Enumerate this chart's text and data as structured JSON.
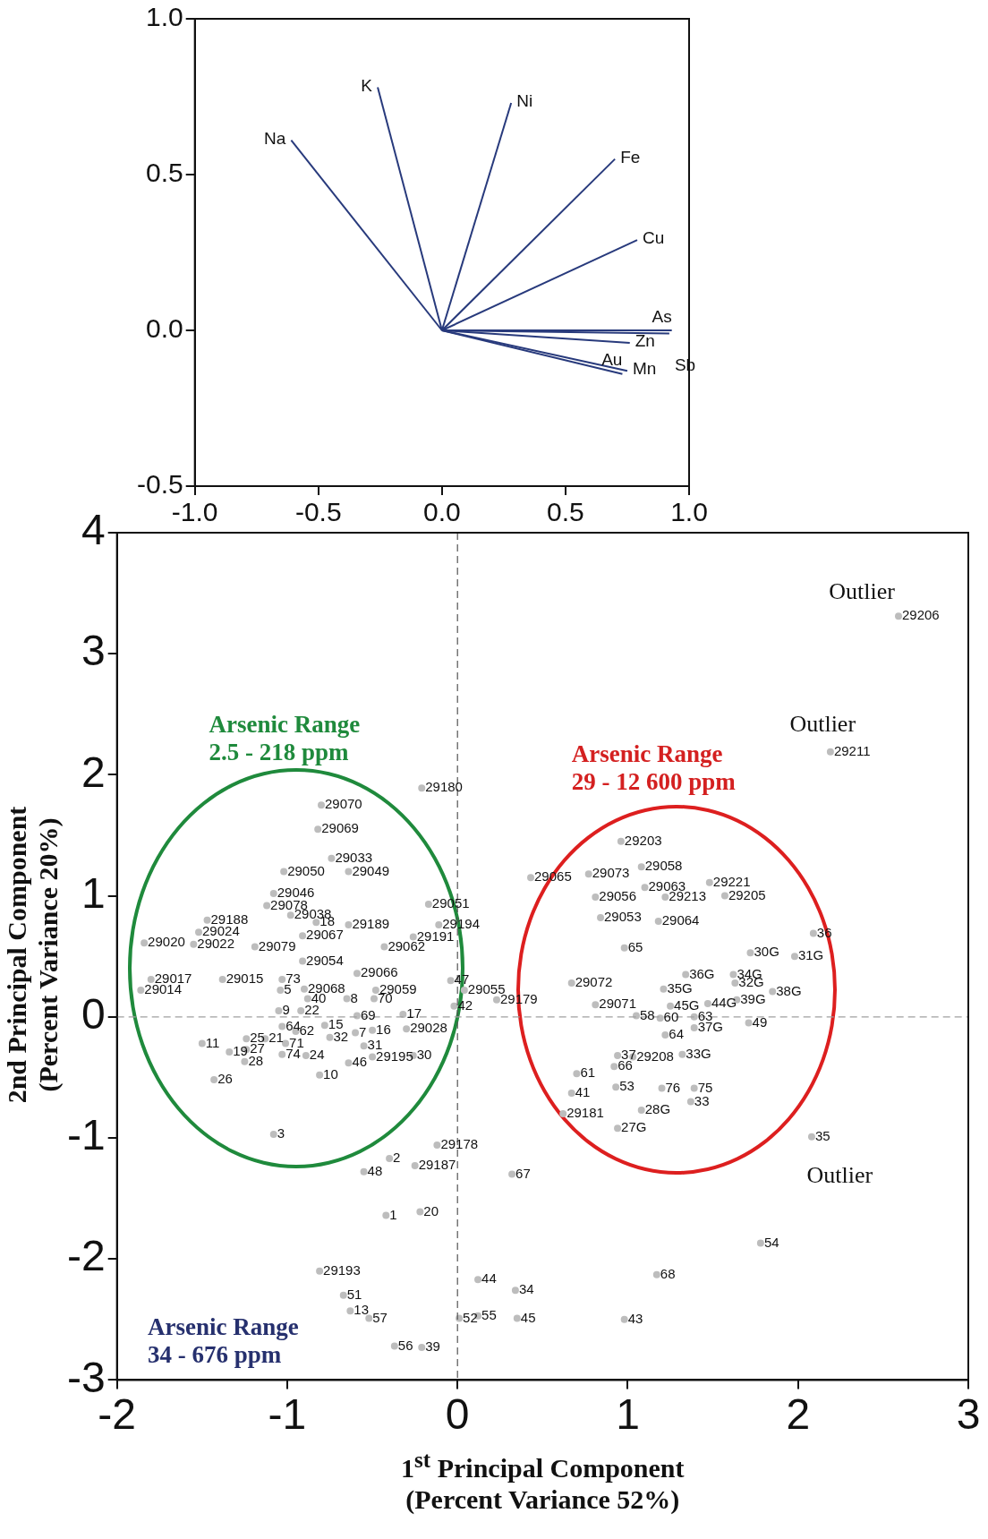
{
  "chart_data": [
    {
      "type": "line",
      "xlim": [
        -1,
        1
      ],
      "xticks": [
        {
          "value": -1,
          "label": "-1.0"
        },
        {
          "value": -0.5,
          "label": "-0.5"
        },
        {
          "value": 0,
          "label": "0.0"
        },
        {
          "value": 0.5,
          "label": "0.5"
        },
        {
          "value": 1,
          "label": "1.0"
        }
      ],
      "ylim": [
        -0.5,
        1
      ],
      "yticks": [
        {
          "value": -0.5,
          "label": "-0.5"
        },
        {
          "value": 0,
          "label": "0.0"
        },
        {
          "value": 0.5,
          "label": "0.5"
        },
        {
          "value": 1,
          "label": "1.0"
        }
      ],
      "series": [
        {
          "name": "Na",
          "color": "#283a7c",
          "x": [
            0,
            -0.61
          ],
          "values": [
            0,
            0.61
          ]
        },
        {
          "name": "K",
          "color": "#283a7c",
          "x": [
            0,
            -0.26
          ],
          "values": [
            0,
            0.78
          ]
        },
        {
          "name": "Ni",
          "color": "#283a7c",
          "x": [
            0,
            0.28
          ],
          "values": [
            0,
            0.73
          ]
        },
        {
          "name": "Fe",
          "color": "#283a7c",
          "x": [
            0,
            0.7
          ],
          "values": [
            0,
            0.55
          ]
        },
        {
          "name": "Cu",
          "color": "#283a7c",
          "x": [
            0,
            0.79
          ],
          "values": [
            0,
            0.29
          ]
        },
        {
          "name": "As",
          "color": "#283a7c",
          "x": [
            0,
            0.93
          ],
          "values": [
            0,
            0.0
          ]
        },
        {
          "name": "Zn",
          "color": "#283a7c",
          "x": [
            0,
            0.76
          ],
          "values": [
            0,
            -0.04
          ]
        },
        {
          "name": "Sb",
          "color": "#283a7c",
          "x": [
            0,
            0.92
          ],
          "values": [
            0,
            -0.01
          ]
        },
        {
          "name": "Mn",
          "color": "#283a7c",
          "x": [
            0,
            0.75
          ],
          "values": [
            0,
            -0.13
          ]
        },
        {
          "name": "Au",
          "color": "#283a7c",
          "x": [
            0,
            0.73
          ],
          "values": [
            0,
            -0.14
          ]
        }
      ]
    },
    {
      "type": "scatter",
      "xlabel": "1$^{st}$ Principal Component\n(Percent Variance 52%)",
      "ylabel": "2nd Principal Component\n(Percent Variance 20%)",
      "color": "#bdbdbd",
      "marker": "circle",
      "xlim": [
        -2,
        3
      ],
      "xticks": [
        -2,
        -1,
        0,
        1,
        2,
        3
      ],
      "ylim": [
        -3,
        4
      ],
      "yticks": [
        -3,
        -2,
        -1,
        0,
        1,
        2,
        3,
        4
      ],
      "ref_lines": [
        {
          "axis": "x",
          "value": 0,
          "line_style": "dashed",
          "color": "#555555"
        },
        {
          "axis": "y",
          "value": 0,
          "line_style": "dashed",
          "color": "#a0a0a0"
        }
      ],
      "x": [
        -0.21,
        -0.8,
        -0.82,
        -0.74,
        -1.02,
        -0.64,
        -1.08,
        -1.12,
        -0.17,
        -0.98,
        -0.64,
        -0.83,
        -0.11,
        -1.47,
        -1.52,
        -0.91,
        -0.26,
        -1.84,
        -1.55,
        -1.19,
        -0.43,
        -0.91,
        -0.59,
        -1.8,
        -1.86,
        -1.38,
        -1.03,
        -1.04,
        -0.9,
        -0.88,
        -0.65,
        -0.48,
        -0.49,
        -0.04,
        -0.02,
        0.04,
        0.23,
        -1.05,
        -0.92,
        -0.59,
        -0.32,
        -0.3,
        -1.03,
        -0.95,
        -0.78,
        -0.75,
        -0.6,
        -0.5,
        -1.5,
        -1.24,
        -1.13,
        -1.34,
        -1.24,
        -1.01,
        -1.03,
        -0.89,
        -0.55,
        -0.5,
        -0.26,
        -1.25,
        -0.64,
        -0.81,
        -1.43,
        -1.08,
        -0.12,
        -0.4,
        -0.55,
        -0.25,
        0.32,
        -0.42,
        -0.22,
        -0.81,
        0.12,
        0.34,
        -0.67,
        -0.63,
        -0.52,
        0.01,
        0.12,
        0.35,
        -0.37,
        -0.21,
        0.96,
        1.08,
        0.43,
        0.77,
        1.1,
        1.48,
        0.81,
        1.22,
        1.57,
        0.84,
        1.18,
        2.09,
        0.98,
        1.72,
        1.98,
        0.67,
        1.34,
        1.62,
        1.63,
        1.21,
        1.85,
        1.47,
        1.64,
        1.25,
        0.81,
        1.05,
        1.19,
        1.39,
        1.71,
        1.39,
        1.22,
        0.94,
        1.03,
        1.32,
        0.92,
        0.7,
        0.67,
        0.93,
        1.2,
        1.39,
        1.37,
        1.08,
        0.62,
        0.94,
        2.08,
        2.59,
        2.19,
        1.78,
        1.17,
        0.98
      ],
      "values": [
        1.89,
        1.75,
        1.55,
        1.31,
        1.2,
        1.2,
        1.02,
        0.92,
        0.93,
        0.84,
        0.76,
        0.78,
        0.76,
        0.8,
        0.7,
        0.67,
        0.66,
        0.61,
        0.6,
        0.58,
        0.58,
        0.46,
        0.36,
        0.31,
        0.22,
        0.31,
        0.31,
        0.22,
        0.23,
        0.15,
        0.15,
        0.22,
        0.15,
        0.3,
        0.09,
        0.22,
        0.14,
        0.05,
        0.05,
        0.01,
        0.02,
        -0.1,
        -0.08,
        -0.12,
        -0.07,
        -0.17,
        -0.13,
        -0.11,
        -0.22,
        -0.18,
        -0.18,
        -0.29,
        -0.27,
        -0.22,
        -0.31,
        -0.32,
        -0.24,
        -0.33,
        -0.32,
        -0.37,
        -0.38,
        -0.48,
        -0.52,
        -0.97,
        -1.06,
        -1.17,
        -1.28,
        -1.23,
        -1.3,
        -1.64,
        -1.61,
        -2.1,
        -2.17,
        -2.26,
        -2.3,
        -2.43,
        -2.49,
        -2.49,
        -2.47,
        -2.49,
        -2.72,
        -2.73,
        1.45,
        1.24,
        1.15,
        1.18,
        1.07,
        1.11,
        0.99,
        0.99,
        1.0,
        0.82,
        0.79,
        0.69,
        0.57,
        0.53,
        0.5,
        0.28,
        0.35,
        0.35,
        0.28,
        0.23,
        0.21,
        0.11,
        0.14,
        0.09,
        0.1,
        0.01,
        -0.01,
        0.0,
        -0.05,
        -0.09,
        -0.15,
        -0.32,
        -0.33,
        -0.31,
        -0.41,
        -0.47,
        -0.63,
        -0.58,
        -0.59,
        -0.59,
        -0.7,
        -0.77,
        -0.8,
        -0.92,
        -0.99,
        3.31,
        2.19,
        -1.87,
        -2.13,
        -2.5
      ],
      "annotations": [
        "Arsenic Range\n2.5 - 218 ppm",
        "Arsenic Range\n29 - 12 600 ppm",
        "Arsenic Range\n34 - 676 ppm",
        "Outlier",
        "Outlier",
        "Outlier",
        {
          "text": "29180",
          "x": -0.21,
          "y": 1.89
        },
        {
          "text": "29070",
          "x": -0.8,
          "y": 1.75
        },
        {
          "text": "29069",
          "x": -0.82,
          "y": 1.55
        },
        {
          "text": "29033",
          "x": -0.74,
          "y": 1.31
        },
        {
          "text": "29050",
          "x": -1.02,
          "y": 1.2
        },
        {
          "text": "29049",
          "x": -0.64,
          "y": 1.2
        },
        {
          "text": "29046",
          "x": -1.08,
          "y": 1.02
        },
        {
          "text": "29078",
          "x": -1.12,
          "y": 0.92
        },
        {
          "text": "29051",
          "x": -0.17,
          "y": 0.93
        },
        {
          "text": "29038",
          "x": -0.98,
          "y": 0.84
        },
        {
          "text": "29189",
          "x": -0.64,
          "y": 0.76
        },
        {
          "text": "18",
          "x": -0.83,
          "y": 0.78
        },
        {
          "text": "29194",
          "x": -0.11,
          "y": 0.76
        },
        {
          "text": "29188",
          "x": -1.47,
          "y": 0.8
        },
        {
          "text": "29024",
          "x": -1.52,
          "y": 0.7
        },
        {
          "text": "29067",
          "x": -0.91,
          "y": 0.67
        },
        {
          "text": "29191",
          "x": -0.26,
          "y": 0.66
        },
        {
          "text": "29020",
          "x": -1.84,
          "y": 0.61
        },
        {
          "text": "29022",
          "x": -1.55,
          "y": 0.6
        },
        {
          "text": "29079",
          "x": -1.19,
          "y": 0.58
        },
        {
          "text": "29062",
          "x": -0.43,
          "y": 0.58
        },
        {
          "text": "29054",
          "x": -0.91,
          "y": 0.46
        },
        {
          "text": "29066",
          "x": -0.59,
          "y": 0.36
        },
        {
          "text": "29017",
          "x": -1.8,
          "y": 0.31
        },
        {
          "text": "29014",
          "x": -1.86,
          "y": 0.22
        },
        {
          "text": "29015",
          "x": -1.38,
          "y": 0.31
        },
        {
          "text": "73",
          "x": -1.03,
          "y": 0.31
        },
        {
          "text": "5",
          "x": -1.04,
          "y": 0.22
        },
        {
          "text": "29068",
          "x": -0.9,
          "y": 0.23
        },
        {
          "text": "40",
          "x": -0.88,
          "y": 0.15
        },
        {
          "text": "8",
          "x": -0.65,
          "y": 0.15
        },
        {
          "text": "29059",
          "x": -0.48,
          "y": 0.22
        },
        {
          "text": "70",
          "x": -0.49,
          "y": 0.15
        },
        {
          "text": "47",
          "x": -0.04,
          "y": 0.3
        },
        {
          "text": "42",
          "x": -0.02,
          "y": 0.09
        },
        {
          "text": "29055",
          "x": 0.04,
          "y": 0.22
        },
        {
          "text": "29179",
          "x": 0.23,
          "y": 0.14
        },
        {
          "text": "9",
          "x": -1.05,
          "y": 0.05
        },
        {
          "text": "22",
          "x": -0.92,
          "y": 0.05
        },
        {
          "text": "69",
          "x": -0.59,
          "y": 0.01
        },
        {
          "text": "17",
          "x": -0.32,
          "y": 0.02
        },
        {
          "text": "29028",
          "x": -0.3,
          "y": -0.1
        },
        {
          "text": "64",
          "x": -1.03,
          "y": -0.08
        },
        {
          "text": "62",
          "x": -0.95,
          "y": -0.12
        },
        {
          "text": "15",
          "x": -0.78,
          "y": -0.07
        },
        {
          "text": "32",
          "x": -0.75,
          "y": -0.17
        },
        {
          "text": "7",
          "x": -0.6,
          "y": -0.13
        },
        {
          "text": "16",
          "x": -0.5,
          "y": -0.11
        },
        {
          "text": "11",
          "x": -1.5,
          "y": -0.22
        },
        {
          "text": "25",
          "x": -1.24,
          "y": -0.18
        },
        {
          "text": "21",
          "x": -1.13,
          "y": -0.18
        },
        {
          "text": "19",
          "x": -1.34,
          "y": -0.29
        },
        {
          "text": "27",
          "x": -1.24,
          "y": -0.27
        },
        {
          "text": "71",
          "x": -1.01,
          "y": -0.22
        },
        {
          "text": "74",
          "x": -1.03,
          "y": -0.31
        },
        {
          "text": "24",
          "x": -0.89,
          "y": -0.32
        },
        {
          "text": "31",
          "x": -0.55,
          "y": -0.24
        },
        {
          "text": "29195",
          "x": -0.5,
          "y": -0.33
        },
        {
          "text": "30",
          "x": -0.26,
          "y": -0.32
        },
        {
          "text": "28",
          "x": -1.25,
          "y": -0.37
        },
        {
          "text": "46",
          "x": -0.64,
          "y": -0.38
        },
        {
          "text": "10",
          "x": -0.81,
          "y": -0.48
        },
        {
          "text": "26",
          "x": -1.43,
          "y": -0.52
        },
        {
          "text": "3",
          "x": -1.08,
          "y": -0.97
        },
        {
          "text": "29178",
          "x": -0.12,
          "y": -1.06
        },
        {
          "text": "2",
          "x": -0.4,
          "y": -1.17
        },
        {
          "text": "48",
          "x": -0.55,
          "y": -1.28
        },
        {
          "text": "29187",
          "x": -0.25,
          "y": -1.23
        },
        {
          "text": "67",
          "x": 0.32,
          "y": -1.3
        },
        {
          "text": "1",
          "x": -0.42,
          "y": -1.64
        },
        {
          "text": "20",
          "x": -0.22,
          "y": -1.61
        },
        {
          "text": "29193",
          "x": -0.81,
          "y": -2.1
        },
        {
          "text": "44",
          "x": 0.12,
          "y": -2.17
        },
        {
          "text": "34",
          "x": 0.34,
          "y": -2.26
        },
        {
          "text": "51",
          "x": -0.67,
          "y": -2.3
        },
        {
          "text": "13",
          "x": -0.63,
          "y": -2.43
        },
        {
          "text": "57",
          "x": -0.52,
          "y": -2.49
        },
        {
          "text": "52",
          "x": 0.01,
          "y": -2.49
        },
        {
          "text": "55",
          "x": 0.12,
          "y": -2.47
        },
        {
          "text": "45",
          "x": 0.35,
          "y": -2.49
        },
        {
          "text": "56",
          "x": -0.37,
          "y": -2.72
        },
        {
          "text": "39",
          "x": -0.21,
          "y": -2.73
        },
        {
          "text": "29203",
          "x": 0.96,
          "y": 1.45
        },
        {
          "text": "29058",
          "x": 1.08,
          "y": 1.24
        },
        {
          "text": "29065",
          "x": 0.43,
          "y": 1.15
        },
        {
          "text": "29073",
          "x": 0.77,
          "y": 1.18
        },
        {
          "text": "29063",
          "x": 1.1,
          "y": 1.07
        },
        {
          "text": "29221",
          "x": 1.48,
          "y": 1.11
        },
        {
          "text": "29056",
          "x": 0.81,
          "y": 0.99
        },
        {
          "text": "29213",
          "x": 1.22,
          "y": 0.99
        },
        {
          "text": "29205",
          "x": 1.57,
          "y": 1.0
        },
        {
          "text": "29053",
          "x": 0.84,
          "y": 0.82
        },
        {
          "text": "29064",
          "x": 1.18,
          "y": 0.79
        },
        {
          "text": "36",
          "x": 2.09,
          "y": 0.69
        },
        {
          "text": "65",
          "x": 0.98,
          "y": 0.57
        },
        {
          "text": "30G",
          "x": 1.72,
          "y": 0.53
        },
        {
          "text": "31G",
          "x": 1.98,
          "y": 0.5
        },
        {
          "text": "29072",
          "x": 0.67,
          "y": 0.28
        },
        {
          "text": "36G",
          "x": 1.34,
          "y": 0.35
        },
        {
          "text": "34G",
          "x": 1.62,
          "y": 0.35
        },
        {
          "text": "32G",
          "x": 1.63,
          "y": 0.28
        },
        {
          "text": "35G",
          "x": 1.21,
          "y": 0.23
        },
        {
          "text": "38G",
          "x": 1.85,
          "y": 0.21
        },
        {
          "text": "44G",
          "x": 1.47,
          "y": 0.11
        },
        {
          "text": "39G",
          "x": 1.64,
          "y": 0.14
        },
        {
          "text": "45G",
          "x": 1.25,
          "y": 0.09
        },
        {
          "text": "29071",
          "x": 0.81,
          "y": 0.1
        },
        {
          "text": "58",
          "x": 1.05,
          "y": 0.01
        },
        {
          "text": "60",
          "x": 1.19,
          "y": -0.01
        },
        {
          "text": "63",
          "x": 1.39,
          "y": 0.0
        },
        {
          "text": "49",
          "x": 1.71,
          "y": -0.05
        },
        {
          "text": "37G",
          "x": 1.39,
          "y": -0.09
        },
        {
          "text": "64",
          "x": 1.22,
          "y": -0.15
        },
        {
          "text": "37",
          "x": 0.94,
          "y": -0.32
        },
        {
          "text": "29208",
          "x": 1.03,
          "y": -0.33
        },
        {
          "text": "33G",
          "x": 1.32,
          "y": -0.31
        },
        {
          "text": "66",
          "x": 0.92,
          "y": -0.41
        },
        {
          "text": "61",
          "x": 0.7,
          "y": -0.47
        },
        {
          "text": "41",
          "x": 0.67,
          "y": -0.63
        },
        {
          "text": "53",
          "x": 0.93,
          "y": -0.58
        },
        {
          "text": "76",
          "x": 1.2,
          "y": -0.59
        },
        {
          "text": "75",
          "x": 1.39,
          "y": -0.59
        },
        {
          "text": "33",
          "x": 1.37,
          "y": -0.7
        },
        {
          "text": "28G",
          "x": 1.08,
          "y": -0.77
        },
        {
          "text": "29181",
          "x": 0.62,
          "y": -0.8
        },
        {
          "text": "27G",
          "x": 0.94,
          "y": -0.92
        },
        {
          "text": "35",
          "x": 2.08,
          "y": -0.99
        },
        {
          "text": "29206",
          "x": 2.59,
          "y": 3.31
        },
        {
          "text": "29211",
          "x": 2.19,
          "y": 2.19
        },
        {
          "text": "54",
          "x": 1.78,
          "y": -1.87
        },
        {
          "text": "68",
          "x": 1.17,
          "y": -2.13
        },
        {
          "text": "43",
          "x": 0.98,
          "y": -2.5
        }
      ]
    }
  ]
}
